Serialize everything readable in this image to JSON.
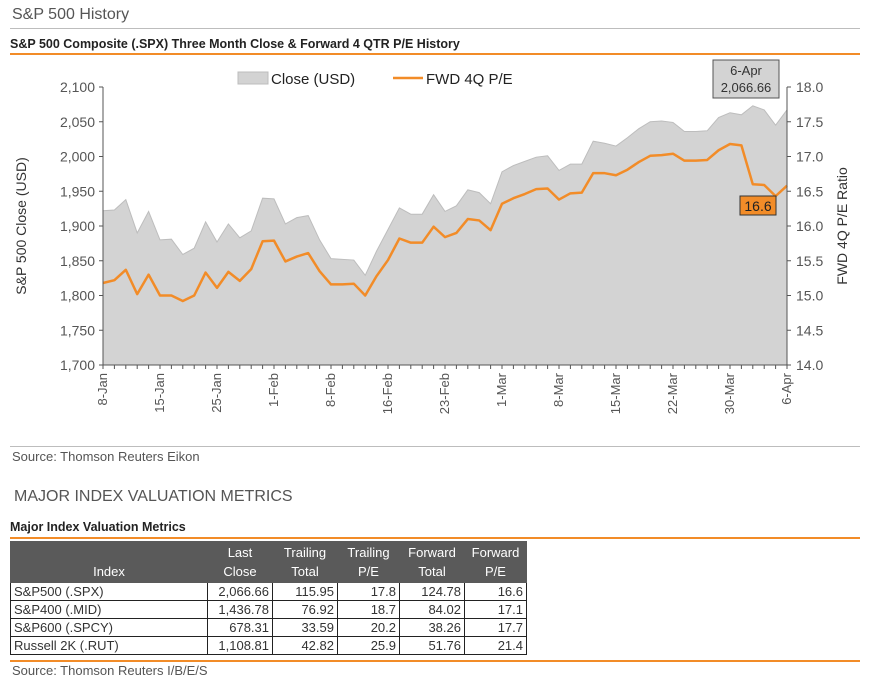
{
  "page_title": "S&P 500 History",
  "chart_title": "S&P 500 Composite (.SPX) Three Month Close & Forward 4 QTR P/E History",
  "chart_source": "Source: Thomson Reuters Eikon",
  "section_title": "MAJOR INDEX VALUATION METRICS",
  "table_title": "Major Index Valuation Metrics",
  "table_source": "Source: Thomson Reuters I/B/E/S",
  "table": {
    "headers": [
      {
        "line1": "",
        "line2": "Index"
      },
      {
        "line1": "Last",
        "line2": "Close"
      },
      {
        "line1": "Trailing",
        "line2": "Total"
      },
      {
        "line1": "Trailing",
        "line2": "P/E"
      },
      {
        "line1": "Forward",
        "line2": "Total"
      },
      {
        "line1": "Forward",
        "line2": "P/E"
      }
    ],
    "rows": [
      [
        "S&P500 (.SPX)",
        "2,066.66",
        "115.95",
        "17.8",
        "124.78",
        "16.6"
      ],
      [
        "S&P400 (.MID)",
        "1,436.78",
        "76.92",
        "18.7",
        "84.02",
        "17.1"
      ],
      [
        "S&P600 (.SPCY)",
        "678.31",
        "33.59",
        "20.2",
        "38.26",
        "17.7"
      ],
      [
        "Russell 2K (.RUT)",
        "1,108.81",
        "42.82",
        "25.9",
        "51.76",
        "21.4"
      ]
    ]
  },
  "chart_data": {
    "type": "area",
    "x": [
      "8-Jan",
      "11-Jan",
      "12-Jan",
      "13-Jan",
      "14-Jan",
      "15-Jan",
      "19-Jan",
      "20-Jan",
      "21-Jan",
      "22-Jan",
      "25-Jan",
      "26-Jan",
      "27-Jan",
      "28-Jan",
      "29-Jan",
      "1-Feb",
      "2-Feb",
      "3-Feb",
      "4-Feb",
      "5-Feb",
      "8-Feb",
      "9-Feb",
      "10-Feb",
      "11-Feb",
      "12-Feb",
      "16-Feb",
      "17-Feb",
      "18-Feb",
      "19-Feb",
      "22-Feb",
      "23-Feb",
      "24-Feb",
      "25-Feb",
      "26-Feb",
      "29-Feb",
      "1-Mar",
      "2-Mar",
      "3-Mar",
      "4-Mar",
      "7-Mar",
      "8-Mar",
      "9-Mar",
      "10-Mar",
      "11-Mar",
      "14-Mar",
      "15-Mar",
      "16-Mar",
      "17-Mar",
      "18-Mar",
      "21-Mar",
      "22-Mar",
      "23-Mar",
      "24-Mar",
      "28-Mar",
      "29-Mar",
      "30-Mar",
      "31-Mar",
      "1-Apr",
      "4-Apr",
      "5-Apr",
      "6-Apr"
    ],
    "x_tick_labels": [
      "8-Jan",
      "15-Jan",
      "25-Jan",
      "1-Feb",
      "8-Feb",
      "16-Feb",
      "23-Feb",
      "1-Mar",
      "8-Mar",
      "15-Mar",
      "22-Mar",
      "30-Mar",
      "6-Apr"
    ],
    "x_tick_index": [
      0,
      5,
      10,
      15,
      20,
      25,
      30,
      35,
      40,
      45,
      50,
      55,
      60
    ],
    "series": [
      {
        "name": "Close (USD)",
        "type": "area",
        "axis": "left",
        "color": "#d3d3d3",
        "values": [
          1922,
          1923,
          1938,
          1890,
          1921,
          1880,
          1881,
          1859,
          1868,
          1906,
          1877,
          1903,
          1883,
          1893,
          1940,
          1939,
          1903,
          1912,
          1915,
          1880,
          1853,
          1852,
          1851,
          1829,
          1864,
          1895,
          1926,
          1917,
          1917,
          1945,
          1921,
          1929,
          1952,
          1948,
          1932,
          1978,
          1987,
          1993,
          1999,
          2001,
          1980,
          1989,
          1989,
          2022,
          2019,
          2015,
          2027,
          2040,
          2050,
          2051,
          2049,
          2036,
          2036,
          2037,
          2056,
          2063,
          2060,
          2073,
          2067,
          2045,
          2067
        ]
      },
      {
        "name": "FWD 4Q P/E",
        "type": "line",
        "axis": "right",
        "color": "#f28c28",
        "values": [
          15.18,
          15.22,
          15.37,
          15.02,
          15.3,
          15.0,
          15.0,
          14.92,
          15.0,
          15.33,
          15.11,
          15.34,
          15.21,
          15.38,
          15.78,
          15.79,
          15.49,
          15.56,
          15.61,
          15.35,
          15.16,
          15.16,
          15.17,
          15.0,
          15.28,
          15.51,
          15.82,
          15.76,
          15.76,
          15.99,
          15.84,
          15.9,
          16.1,
          16.08,
          15.94,
          16.32,
          16.4,
          16.46,
          16.53,
          16.54,
          16.38,
          16.47,
          16.48,
          16.76,
          16.76,
          16.73,
          16.81,
          16.92,
          17.01,
          17.02,
          17.04,
          16.94,
          16.94,
          16.95,
          17.09,
          17.18,
          17.16,
          16.6,
          16.59,
          16.43,
          16.58
        ]
      }
    ],
    "ylabel": "S&P 500 Close (USD)",
    "ylabel_right": "FWD 4Q P/E Ratio",
    "ylim": [
      1700,
      2100
    ],
    "ylim_right": [
      14.0,
      18.0
    ],
    "y_ticks": [
      "1,700",
      "1,750",
      "1,800",
      "1,850",
      "1,900",
      "1,950",
      "2,000",
      "2,050",
      "2,100"
    ],
    "y_ticks_right": [
      "14.0",
      "14.5",
      "15.0",
      "15.5",
      "16.0",
      "16.5",
      "17.0",
      "17.5",
      "18.0"
    ],
    "grid": false,
    "legend": "top-center",
    "annotations": {
      "last_close_date": "6-Apr",
      "last_close_value": "2,066.66",
      "last_pe_value": "16.6"
    }
  }
}
